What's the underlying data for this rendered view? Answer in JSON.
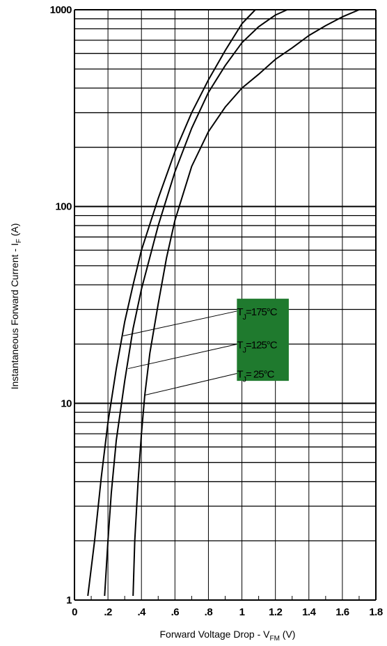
{
  "chart_data": {
    "type": "line",
    "title": "",
    "xlabel": {
      "main": "Forward Voltage Drop - V",
      "sub": "FM",
      "unit": " (V)"
    },
    "ylabel": {
      "main": "Instantaneous Forward Current - I",
      "sub": "F",
      "unit": " (A)"
    },
    "xlim": [
      0,
      1.8
    ],
    "ylim": [
      1,
      1000
    ],
    "yscale": "log",
    "grid": true,
    "x_ticks": [
      0,
      0.2,
      0.4,
      0.6,
      0.8,
      1.0,
      1.2,
      1.4,
      1.6,
      1.8
    ],
    "x_tick_labels": [
      "0",
      ".2",
      ".4",
      ".6",
      ".8",
      "1",
      "1.2",
      "1.4",
      "1.6",
      "1.8"
    ],
    "y_ticks": [
      1,
      10,
      100,
      1000
    ],
    "y_tick_labels": [
      "1",
      "10",
      "100",
      "1000"
    ],
    "legend_bg": "#1f7a2e",
    "series": [
      {
        "name": "TJ=175°C",
        "label_main": "T",
        "label_sub": "J",
        "label_rest": "=175°C",
        "x": [
          0.08,
          0.12,
          0.16,
          0.2,
          0.25,
          0.3,
          0.35,
          0.4,
          0.5,
          0.6,
          0.7,
          0.8,
          0.9,
          1.0,
          1.08
        ],
        "y": [
          1.05,
          2.0,
          4.2,
          8.0,
          15,
          26,
          40,
          60,
          110,
          190,
          300,
          440,
          620,
          850,
          1000
        ]
      },
      {
        "name": "TJ=125°C",
        "label_main": "T",
        "label_sub": "J",
        "label_rest": "=125°C",
        "x": [
          0.18,
          0.2,
          0.22,
          0.25,
          0.3,
          0.35,
          0.4,
          0.5,
          0.6,
          0.7,
          0.8,
          0.9,
          1.0,
          1.1,
          1.2,
          1.27
        ],
        "y": [
          1.05,
          2.0,
          3.5,
          6.5,
          13,
          24,
          38,
          80,
          150,
          250,
          380,
          520,
          680,
          820,
          940,
          1000
        ]
      },
      {
        "name": "TJ= 25°C",
        "label_main": "T",
        "label_sub": "J",
        "label_rest": "= 25°C",
        "x": [
          0.35,
          0.36,
          0.38,
          0.4,
          0.42,
          0.45,
          0.5,
          0.55,
          0.6,
          0.7,
          0.8,
          0.9,
          1.0,
          1.1,
          1.2,
          1.3,
          1.4,
          1.5,
          1.6,
          1.7
        ],
        "y": [
          1.05,
          2.0,
          4.0,
          7.0,
          11,
          18,
          32,
          55,
          85,
          160,
          240,
          320,
          400,
          470,
          560,
          640,
          740,
          830,
          920,
          1000
        ]
      }
    ],
    "annotation_points": [
      {
        "series": 0,
        "x": 0.29,
        "y": 22
      },
      {
        "series": 1,
        "x": 0.32,
        "y": 15
      },
      {
        "series": 2,
        "x": 0.42,
        "y": 11
      }
    ]
  }
}
